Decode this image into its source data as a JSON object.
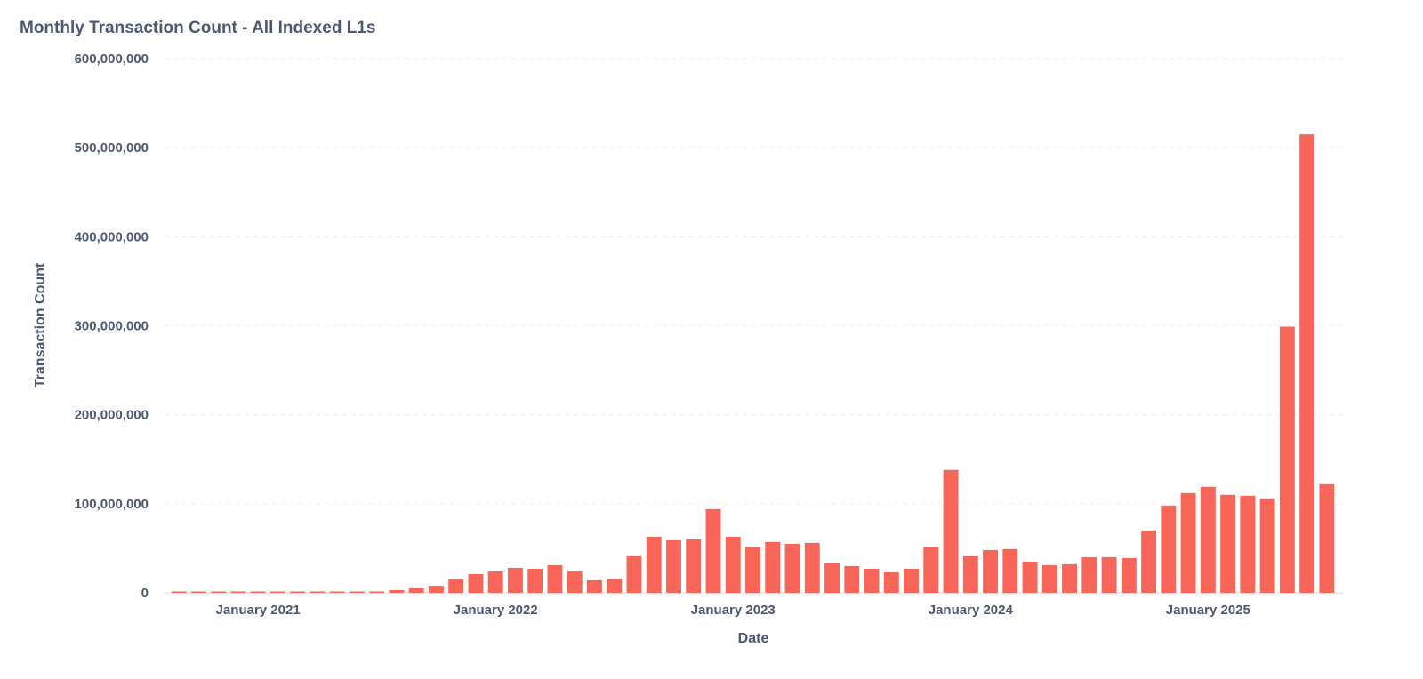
{
  "chart_data": {
    "type": "bar",
    "title": "Monthly Transaction Count - All Indexed L1s",
    "x_label": "Date",
    "y_label": "Transaction Count",
    "color": "#f8665a",
    "grid": true,
    "x": [
      "2020-09",
      "2020-10",
      "2020-11",
      "2020-12",
      "2021-01",
      "2021-02",
      "2021-03",
      "2021-04",
      "2021-05",
      "2021-06",
      "2021-07",
      "2021-08",
      "2021-09",
      "2021-10",
      "2021-11",
      "2021-12",
      "2022-01",
      "2022-02",
      "2022-03",
      "2022-04",
      "2022-05",
      "2022-06",
      "2022-07",
      "2022-08",
      "2022-09",
      "2022-10",
      "2022-11",
      "2022-12",
      "2023-01",
      "2023-02",
      "2023-03",
      "2023-04",
      "2023-05",
      "2023-06",
      "2023-07",
      "2023-08",
      "2023-09",
      "2023-10",
      "2023-11",
      "2023-12",
      "2024-01",
      "2024-02",
      "2024-03",
      "2024-04",
      "2024-05",
      "2024-06",
      "2024-07",
      "2024-08",
      "2024-09",
      "2024-10",
      "2024-11",
      "2024-12",
      "2025-01",
      "2025-02",
      "2025-03",
      "2025-04",
      "2025-05",
      "2025-06",
      "2025-07"
    ],
    "values": [
      1500000,
      1500000,
      1500000,
      1500000,
      1500000,
      1500000,
      1500000,
      1500000,
      1500000,
      1500000,
      1500000,
      3000000,
      5000000,
      8000000,
      15000000,
      21000000,
      24000000,
      28000000,
      27000000,
      31000000,
      24000000,
      14000000,
      16000000,
      41000000,
      63000000,
      59000000,
      60000000,
      94000000,
      63000000,
      51000000,
      57000000,
      55000000,
      56000000,
      33000000,
      30000000,
      27000000,
      23000000,
      27000000,
      51000000,
      138000000,
      41000000,
      48000000,
      49000000,
      35000000,
      31000000,
      32000000,
      40000000,
      40000000,
      39000000,
      70000000,
      98000000,
      112000000,
      119000000,
      110000000,
      109000000,
      106000000,
      299000000,
      515000000,
      122000000
    ],
    "xticks": [
      {
        "value": "2021-01",
        "label": "January 2021"
      },
      {
        "value": "2022-01",
        "label": "January 2022"
      },
      {
        "value": "2023-01",
        "label": "January 2023"
      },
      {
        "value": "2024-01",
        "label": "January 2024"
      },
      {
        "value": "2025-01",
        "label": "January 2025"
      }
    ],
    "ylim": [
      0,
      600000000
    ],
    "yticks": [
      0,
      {
        "value": 100000000,
        "label": "100,000,000"
      },
      {
        "value": 200000000,
        "label": "200,000,000"
      },
      {
        "value": 300000000,
        "label": "300,000,000"
      },
      {
        "value": 400000000,
        "label": "400,000,000"
      },
      {
        "value": 500000000,
        "label": "500,000,000"
      },
      {
        "value": 600000000,
        "label": "600,000,000"
      }
    ]
  }
}
